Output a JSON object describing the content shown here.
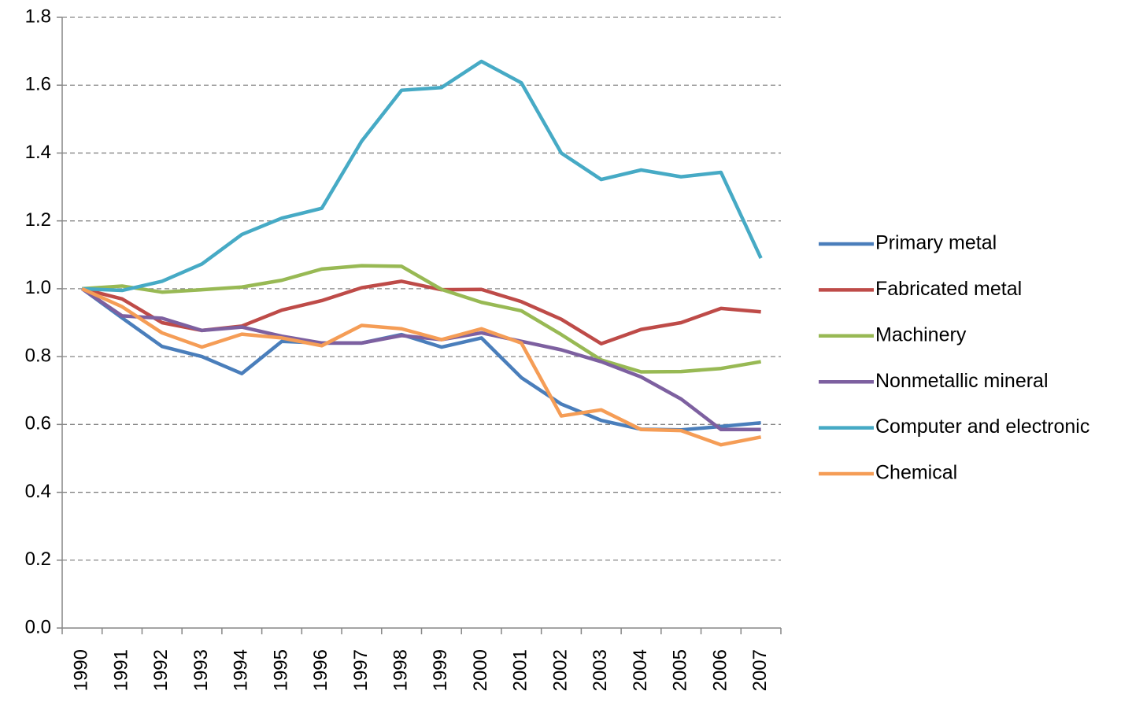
{
  "chart_data": {
    "type": "line",
    "categories": [
      "1990",
      "1991",
      "1992",
      "1993",
      "1994",
      "1995",
      "1996",
      "1997",
      "1998",
      "1999",
      "2000",
      "2001",
      "2002",
      "2003",
      "2004",
      "2005",
      "2006",
      "2007"
    ],
    "series": [
      {
        "name": "Primary metal",
        "color": "#4a7ebb",
        "values": [
          1.0,
          0.914,
          0.83,
          0.8,
          0.75,
          0.845,
          0.84,
          0.84,
          0.865,
          0.828,
          0.855,
          0.738,
          0.66,
          0.612,
          0.586,
          0.584,
          0.594,
          0.605
        ]
      },
      {
        "name": "Fabricated metal",
        "color": "#be4b48",
        "values": [
          1.0,
          0.97,
          0.9,
          0.877,
          0.89,
          0.937,
          0.965,
          1.003,
          1.022,
          0.997,
          0.998,
          0.962,
          0.91,
          0.838,
          0.88,
          0.9,
          0.942,
          0.932
        ]
      },
      {
        "name": "Machinery",
        "color": "#98b954",
        "values": [
          1.0,
          1.008,
          0.99,
          0.997,
          1.005,
          1.025,
          1.058,
          1.068,
          1.066,
          0.998,
          0.96,
          0.935,
          0.865,
          0.79,
          0.755,
          0.756,
          0.765,
          0.785
        ]
      },
      {
        "name": "Nonmetallic mineral",
        "color": "#7d60a0",
        "values": [
          1.0,
          0.92,
          0.913,
          0.877,
          0.887,
          0.86,
          0.84,
          0.84,
          0.862,
          0.85,
          0.87,
          0.845,
          0.82,
          0.785,
          0.74,
          0.675,
          0.585,
          0.585
        ]
      },
      {
        "name": "Computer and electronic",
        "color": "#46aac5",
        "values": [
          1.0,
          0.995,
          1.022,
          1.073,
          1.16,
          1.208,
          1.237,
          1.435,
          1.585,
          1.593,
          1.67,
          1.607,
          1.4,
          1.322,
          1.35,
          1.33,
          1.343,
          1.09
        ]
      },
      {
        "name": "Chemical",
        "color": "#f59d56",
        "values": [
          1.0,
          0.947,
          0.87,
          0.828,
          0.866,
          0.855,
          0.832,
          0.892,
          0.882,
          0.85,
          0.882,
          0.84,
          0.625,
          0.643,
          0.585,
          0.582,
          0.54,
          0.563
        ]
      }
    ],
    "ylim": [
      0,
      1.8
    ],
    "yticks": [
      {
        "value": 0,
        "label": "0.0"
      },
      0.2,
      0.4,
      0.6,
      0.8,
      {
        "value": 1,
        "label": "1.0"
      },
      1.2,
      1.4,
      1.6,
      1.8
    ],
    "grid": true,
    "legend": "right"
  }
}
